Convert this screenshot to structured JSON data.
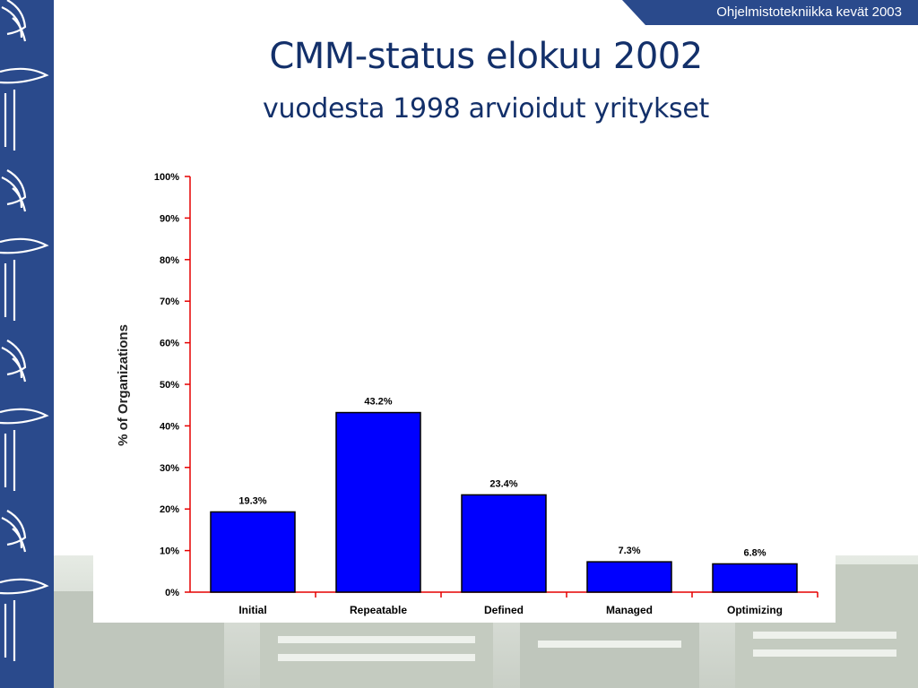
{
  "header": {
    "course_label": "Ohjelmistotekniikka kevät 2003"
  },
  "slide": {
    "title": "CMM-status elokuu 2002",
    "subtitle": "vuodesta 1998 arvioidut yritykset"
  },
  "colors": {
    "band": "#2a4a8c",
    "title": "#13306a",
    "bar": "#0000ff",
    "axis": "#e60000"
  },
  "chart_data": {
    "type": "bar",
    "categories": [
      "Initial",
      "Repeatable",
      "Defined",
      "Managed",
      "Optimizing"
    ],
    "values": [
      19.3,
      43.2,
      23.4,
      7.3,
      6.8
    ],
    "value_labels": [
      "19.3%",
      "43.2%",
      "23.4%",
      "7.3%",
      "6.8%"
    ],
    "ylabel": "% of Organizations",
    "xlabel": "",
    "ylim": [
      0,
      100
    ],
    "yticks": [
      0,
      10,
      20,
      30,
      40,
      50,
      60,
      70,
      80,
      90,
      100
    ],
    "ytick_labels": [
      "0%",
      "10%",
      "20%",
      "30%",
      "40%",
      "50%",
      "60%",
      "70%",
      "80%",
      "90%",
      "100%"
    ],
    "grid": false,
    "legend": "none"
  }
}
